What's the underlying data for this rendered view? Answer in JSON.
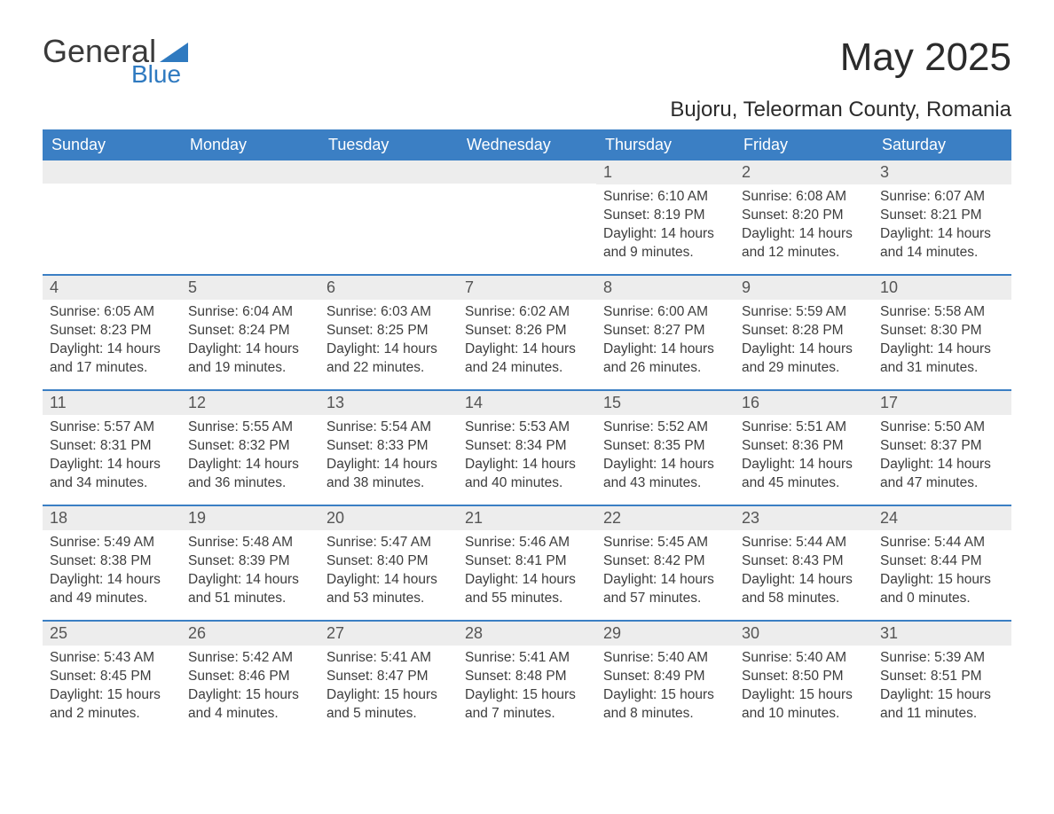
{
  "brand": {
    "text1": "General",
    "text2": "Blue",
    "shape_color": "#2f7ac0"
  },
  "title": "May 2025",
  "location": "Bujoru, Teleorman County, Romania",
  "colors": {
    "header_bg": "#3b7fc4",
    "header_text": "#ffffff",
    "daynum_bg": "#ededed",
    "row_divider": "#3b7fc4",
    "body_text": "#3d3d3d",
    "page_bg": "#ffffff"
  },
  "weekdays": [
    "Sunday",
    "Monday",
    "Tuesday",
    "Wednesday",
    "Thursday",
    "Friday",
    "Saturday"
  ],
  "weeks": [
    [
      {
        "day": "",
        "sunrise": "",
        "sunset": "",
        "daylight": ""
      },
      {
        "day": "",
        "sunrise": "",
        "sunset": "",
        "daylight": ""
      },
      {
        "day": "",
        "sunrise": "",
        "sunset": "",
        "daylight": ""
      },
      {
        "day": "",
        "sunrise": "",
        "sunset": "",
        "daylight": ""
      },
      {
        "day": "1",
        "sunrise": "Sunrise: 6:10 AM",
        "sunset": "Sunset: 8:19 PM",
        "daylight": "Daylight: 14 hours and 9 minutes."
      },
      {
        "day": "2",
        "sunrise": "Sunrise: 6:08 AM",
        "sunset": "Sunset: 8:20 PM",
        "daylight": "Daylight: 14 hours and 12 minutes."
      },
      {
        "day": "3",
        "sunrise": "Sunrise: 6:07 AM",
        "sunset": "Sunset: 8:21 PM",
        "daylight": "Daylight: 14 hours and 14 minutes."
      }
    ],
    [
      {
        "day": "4",
        "sunrise": "Sunrise: 6:05 AM",
        "sunset": "Sunset: 8:23 PM",
        "daylight": "Daylight: 14 hours and 17 minutes."
      },
      {
        "day": "5",
        "sunrise": "Sunrise: 6:04 AM",
        "sunset": "Sunset: 8:24 PM",
        "daylight": "Daylight: 14 hours and 19 minutes."
      },
      {
        "day": "6",
        "sunrise": "Sunrise: 6:03 AM",
        "sunset": "Sunset: 8:25 PM",
        "daylight": "Daylight: 14 hours and 22 minutes."
      },
      {
        "day": "7",
        "sunrise": "Sunrise: 6:02 AM",
        "sunset": "Sunset: 8:26 PM",
        "daylight": "Daylight: 14 hours and 24 minutes."
      },
      {
        "day": "8",
        "sunrise": "Sunrise: 6:00 AM",
        "sunset": "Sunset: 8:27 PM",
        "daylight": "Daylight: 14 hours and 26 minutes."
      },
      {
        "day": "9",
        "sunrise": "Sunrise: 5:59 AM",
        "sunset": "Sunset: 8:28 PM",
        "daylight": "Daylight: 14 hours and 29 minutes."
      },
      {
        "day": "10",
        "sunrise": "Sunrise: 5:58 AM",
        "sunset": "Sunset: 8:30 PM",
        "daylight": "Daylight: 14 hours and 31 minutes."
      }
    ],
    [
      {
        "day": "11",
        "sunrise": "Sunrise: 5:57 AM",
        "sunset": "Sunset: 8:31 PM",
        "daylight": "Daylight: 14 hours and 34 minutes."
      },
      {
        "day": "12",
        "sunrise": "Sunrise: 5:55 AM",
        "sunset": "Sunset: 8:32 PM",
        "daylight": "Daylight: 14 hours and 36 minutes."
      },
      {
        "day": "13",
        "sunrise": "Sunrise: 5:54 AM",
        "sunset": "Sunset: 8:33 PM",
        "daylight": "Daylight: 14 hours and 38 minutes."
      },
      {
        "day": "14",
        "sunrise": "Sunrise: 5:53 AM",
        "sunset": "Sunset: 8:34 PM",
        "daylight": "Daylight: 14 hours and 40 minutes."
      },
      {
        "day": "15",
        "sunrise": "Sunrise: 5:52 AM",
        "sunset": "Sunset: 8:35 PM",
        "daylight": "Daylight: 14 hours and 43 minutes."
      },
      {
        "day": "16",
        "sunrise": "Sunrise: 5:51 AM",
        "sunset": "Sunset: 8:36 PM",
        "daylight": "Daylight: 14 hours and 45 minutes."
      },
      {
        "day": "17",
        "sunrise": "Sunrise: 5:50 AM",
        "sunset": "Sunset: 8:37 PM",
        "daylight": "Daylight: 14 hours and 47 minutes."
      }
    ],
    [
      {
        "day": "18",
        "sunrise": "Sunrise: 5:49 AM",
        "sunset": "Sunset: 8:38 PM",
        "daylight": "Daylight: 14 hours and 49 minutes."
      },
      {
        "day": "19",
        "sunrise": "Sunrise: 5:48 AM",
        "sunset": "Sunset: 8:39 PM",
        "daylight": "Daylight: 14 hours and 51 minutes."
      },
      {
        "day": "20",
        "sunrise": "Sunrise: 5:47 AM",
        "sunset": "Sunset: 8:40 PM",
        "daylight": "Daylight: 14 hours and 53 minutes."
      },
      {
        "day": "21",
        "sunrise": "Sunrise: 5:46 AM",
        "sunset": "Sunset: 8:41 PM",
        "daylight": "Daylight: 14 hours and 55 minutes."
      },
      {
        "day": "22",
        "sunrise": "Sunrise: 5:45 AM",
        "sunset": "Sunset: 8:42 PM",
        "daylight": "Daylight: 14 hours and 57 minutes."
      },
      {
        "day": "23",
        "sunrise": "Sunrise: 5:44 AM",
        "sunset": "Sunset: 8:43 PM",
        "daylight": "Daylight: 14 hours and 58 minutes."
      },
      {
        "day": "24",
        "sunrise": "Sunrise: 5:44 AM",
        "sunset": "Sunset: 8:44 PM",
        "daylight": "Daylight: 15 hours and 0 minutes."
      }
    ],
    [
      {
        "day": "25",
        "sunrise": "Sunrise: 5:43 AM",
        "sunset": "Sunset: 8:45 PM",
        "daylight": "Daylight: 15 hours and 2 minutes."
      },
      {
        "day": "26",
        "sunrise": "Sunrise: 5:42 AM",
        "sunset": "Sunset: 8:46 PM",
        "daylight": "Daylight: 15 hours and 4 minutes."
      },
      {
        "day": "27",
        "sunrise": "Sunrise: 5:41 AM",
        "sunset": "Sunset: 8:47 PM",
        "daylight": "Daylight: 15 hours and 5 minutes."
      },
      {
        "day": "28",
        "sunrise": "Sunrise: 5:41 AM",
        "sunset": "Sunset: 8:48 PM",
        "daylight": "Daylight: 15 hours and 7 minutes."
      },
      {
        "day": "29",
        "sunrise": "Sunrise: 5:40 AM",
        "sunset": "Sunset: 8:49 PM",
        "daylight": "Daylight: 15 hours and 8 minutes."
      },
      {
        "day": "30",
        "sunrise": "Sunrise: 5:40 AM",
        "sunset": "Sunset: 8:50 PM",
        "daylight": "Daylight: 15 hours and 10 minutes."
      },
      {
        "day": "31",
        "sunrise": "Sunrise: 5:39 AM",
        "sunset": "Sunset: 8:51 PM",
        "daylight": "Daylight: 15 hours and 11 minutes."
      }
    ]
  ]
}
